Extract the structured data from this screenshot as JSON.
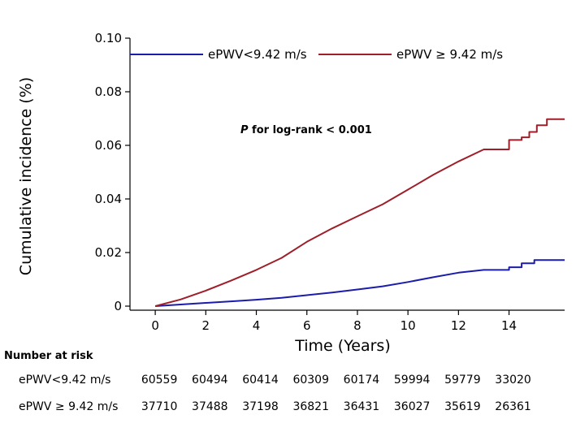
{
  "chart_data": {
    "type": "line",
    "xlabel": "Time (Years)",
    "ylabel": "Cumulative incidence (%)",
    "xlim": [
      -1,
      16.2
    ],
    "ylim": [
      0,
      0.1
    ],
    "xticks": [
      "0",
      "2",
      "4",
      "6",
      "8",
      "10",
      "12",
      "14"
    ],
    "yticks": [
      "0",
      "0.02",
      "0.04",
      "0.06",
      "0.08",
      "0.10"
    ],
    "annotation": {
      "p": "P",
      "text": " for log-rank < 0.001"
    },
    "legend_position": "top",
    "series": [
      {
        "name": "ePWV<9.42 m/s",
        "color": "#1c1caa",
        "x": [
          0,
          1,
          2,
          3,
          4,
          5,
          6,
          7,
          8,
          9,
          10,
          11,
          12,
          13,
          14,
          14.5,
          15,
          16.2
        ],
        "y": [
          0,
          0.0006,
          0.0012,
          0.0018,
          0.0024,
          0.0031,
          0.0041,
          0.0051,
          0.0062,
          0.0074,
          0.009,
          0.0108,
          0.0125,
          0.0135,
          0.0145,
          0.016,
          0.0172,
          0.0172
        ]
      },
      {
        "name": "ePWV ≥ 9.42 m/s",
        "color": "#9e1f2a",
        "x": [
          0,
          1,
          2,
          3,
          4,
          5,
          6,
          7,
          8,
          9,
          10,
          11,
          12,
          13,
          14,
          14.5,
          14.8,
          15.1,
          15.5,
          16.2
        ],
        "y": [
          0,
          0.0025,
          0.0058,
          0.0095,
          0.0135,
          0.018,
          0.024,
          0.029,
          0.0335,
          0.038,
          0.0435,
          0.049,
          0.054,
          0.0585,
          0.062,
          0.063,
          0.065,
          0.0675,
          0.0698,
          0.0698
        ]
      }
    ],
    "risk_table": {
      "header": "Number at risk",
      "rows": [
        {
          "label": "ePWV<9.42 m/s",
          "values": [
            "60559",
            "60494",
            "60414",
            "60309",
            "60174",
            "59994",
            "59779",
            "33020"
          ]
        },
        {
          "label": "ePWV ≥ 9.42 m/s",
          "values": [
            "37710",
            "37488",
            "37198",
            "36821",
            "36431",
            "36027",
            "35619",
            "26361"
          ]
        }
      ]
    }
  }
}
